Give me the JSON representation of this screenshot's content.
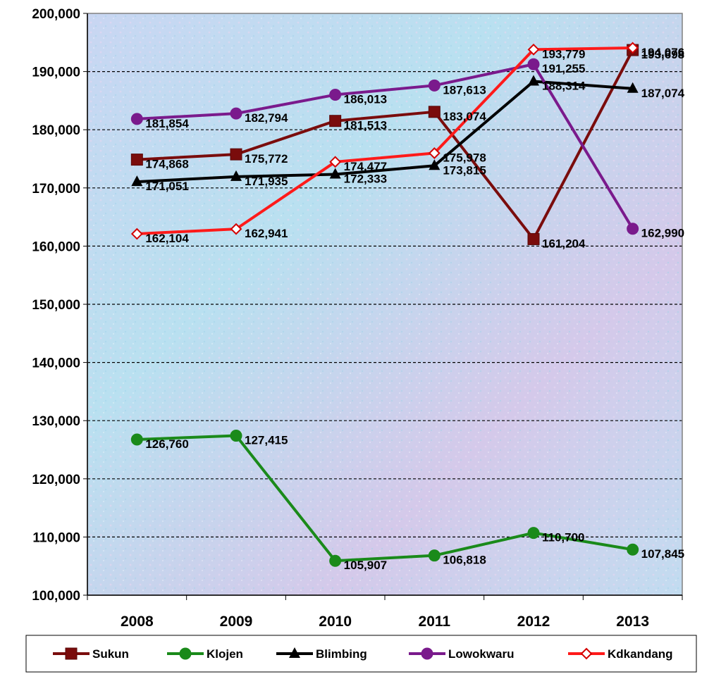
{
  "chart_data": {
    "type": "line",
    "title": "",
    "xlabel": "",
    "ylabel": "",
    "categories": [
      "2008",
      "2009",
      "2010",
      "2011",
      "2012",
      "2013"
    ],
    "ylim": [
      100000,
      200000
    ],
    "ytick_step": 10000,
    "grid": true,
    "legend_position": "bottom",
    "series": [
      {
        "name": "Sukun",
        "color": "#7a0c0c",
        "marker": "square",
        "values": [
          174868,
          175772,
          181513,
          183074,
          161204,
          193698
        ],
        "labels": [
          "174,868",
          "175,772",
          "181,513",
          "183,074",
          "161,204",
          "193,698"
        ]
      },
      {
        "name": "Klojen",
        "color": "#1a8a1a",
        "marker": "circle",
        "values": [
          126760,
          127415,
          105907,
          106818,
          110700,
          107845
        ],
        "labels": [
          "126,760",
          "127,415",
          "105,907",
          "106,818",
          "110,700",
          "107,845"
        ]
      },
      {
        "name": "Blimbing",
        "color": "#000000",
        "marker": "triangle",
        "values": [
          171051,
          171935,
          172333,
          173815,
          188314,
          187074
        ],
        "labels": [
          "171,051",
          "171,935",
          "172,333",
          "173,815",
          "188,314",
          "187,074"
        ]
      },
      {
        "name": "Lowokwaru",
        "color": "#7a1a8c",
        "marker": "circle",
        "values": [
          181854,
          182794,
          186013,
          187613,
          191255,
          162990
        ],
        "labels": [
          "181,854",
          "182,794",
          "186,013",
          "187,613",
          "191,255",
          "162,990"
        ]
      },
      {
        "name": "Kdkandang",
        "color": "#ff1a1a",
        "marker": "diamond",
        "values": [
          162104,
          162941,
          174477,
          175978,
          193779,
          194076
        ],
        "labels": [
          "162,104",
          "162,941",
          "174,477",
          "175,978",
          "193,779",
          "194,076"
        ]
      }
    ]
  }
}
